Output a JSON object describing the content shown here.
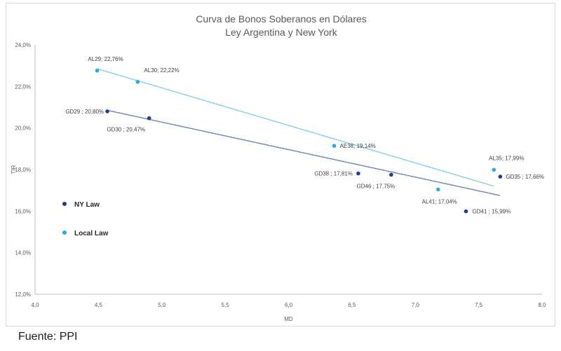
{
  "chart_data": {
    "type": "scatter",
    "title_lines": [
      "Curva de Bonos Soberanos en Dólares",
      "Ley Argentina y New York"
    ],
    "xlabel": "MD",
    "ylabel": "TIR",
    "xlim": [
      4.0,
      8.0
    ],
    "ylim": [
      12.0,
      24.0
    ],
    "x_ticks": [
      4.0,
      4.5,
      5.0,
      5.5,
      6.0,
      6.5,
      7.0,
      7.5,
      8.0
    ],
    "x_tick_labels": [
      "4,0",
      "4,5",
      "5,0",
      "5,5",
      "6,0",
      "6,5",
      "7,0",
      "7,5",
      "8,0"
    ],
    "y_ticks": [
      12,
      14,
      16,
      18,
      20,
      22,
      24
    ],
    "y_tick_labels": [
      "12,0%",
      "14,0%",
      "16,0%",
      "18,0%",
      "20,0%",
      "22,0%",
      "24,0%"
    ],
    "grid": false,
    "series": [
      {
        "name": "NY Law",
        "color": "#1f3f8f",
        "points": [
          {
            "x": 4.57,
            "y": 20.8,
            "label": "GD29 ; 20,80%",
            "anchor": "end"
          },
          {
            "x": 4.9,
            "y": 20.47,
            "label": "GD30 ; 20,47%",
            "anchor": "middle"
          },
          {
            "x": 6.55,
            "y": 17.81,
            "label": "GD38 ; 17,81%",
            "anchor": "end"
          },
          {
            "x": 6.81,
            "y": 17.75,
            "label": "GD46 ; 17,75%",
            "anchor": "middle"
          },
          {
            "x": 7.4,
            "y": 15.99,
            "label": "GD41 ; 15,99%",
            "anchor": "start"
          },
          {
            "x": 7.67,
            "y": 17.66,
            "label": "GD35 ; 17,66%",
            "anchor": "start"
          }
        ],
        "trend": {
          "x0": 4.57,
          "y0": 20.85,
          "x1": 7.67,
          "y1": 16.75
        }
      },
      {
        "name": "Local Law",
        "color": "#29abe2",
        "points": [
          {
            "x": 4.49,
            "y": 22.76,
            "label": "AL29; 22,76%",
            "anchor": "middle"
          },
          {
            "x": 4.81,
            "y": 22.22,
            "label": "AL30; 22,22%",
            "anchor": "start"
          },
          {
            "x": 6.36,
            "y": 19.14,
            "label": "AE38; 19,14%",
            "anchor": "start"
          },
          {
            "x": 7.18,
            "y": 17.04,
            "label": "AL41; 17,04%",
            "anchor": "middle"
          },
          {
            "x": 7.62,
            "y": 17.99,
            "label": "AL35; 17,99%",
            "anchor": "middle"
          }
        ],
        "trend": {
          "x0": 4.49,
          "y0": 22.85,
          "x1": 7.62,
          "y1": 17.2
        }
      }
    ],
    "legend": {
      "placement": "left",
      "entries": [
        "NY Law",
        "Local Law"
      ]
    }
  },
  "footer": {
    "source": "Fuente: PPI"
  }
}
